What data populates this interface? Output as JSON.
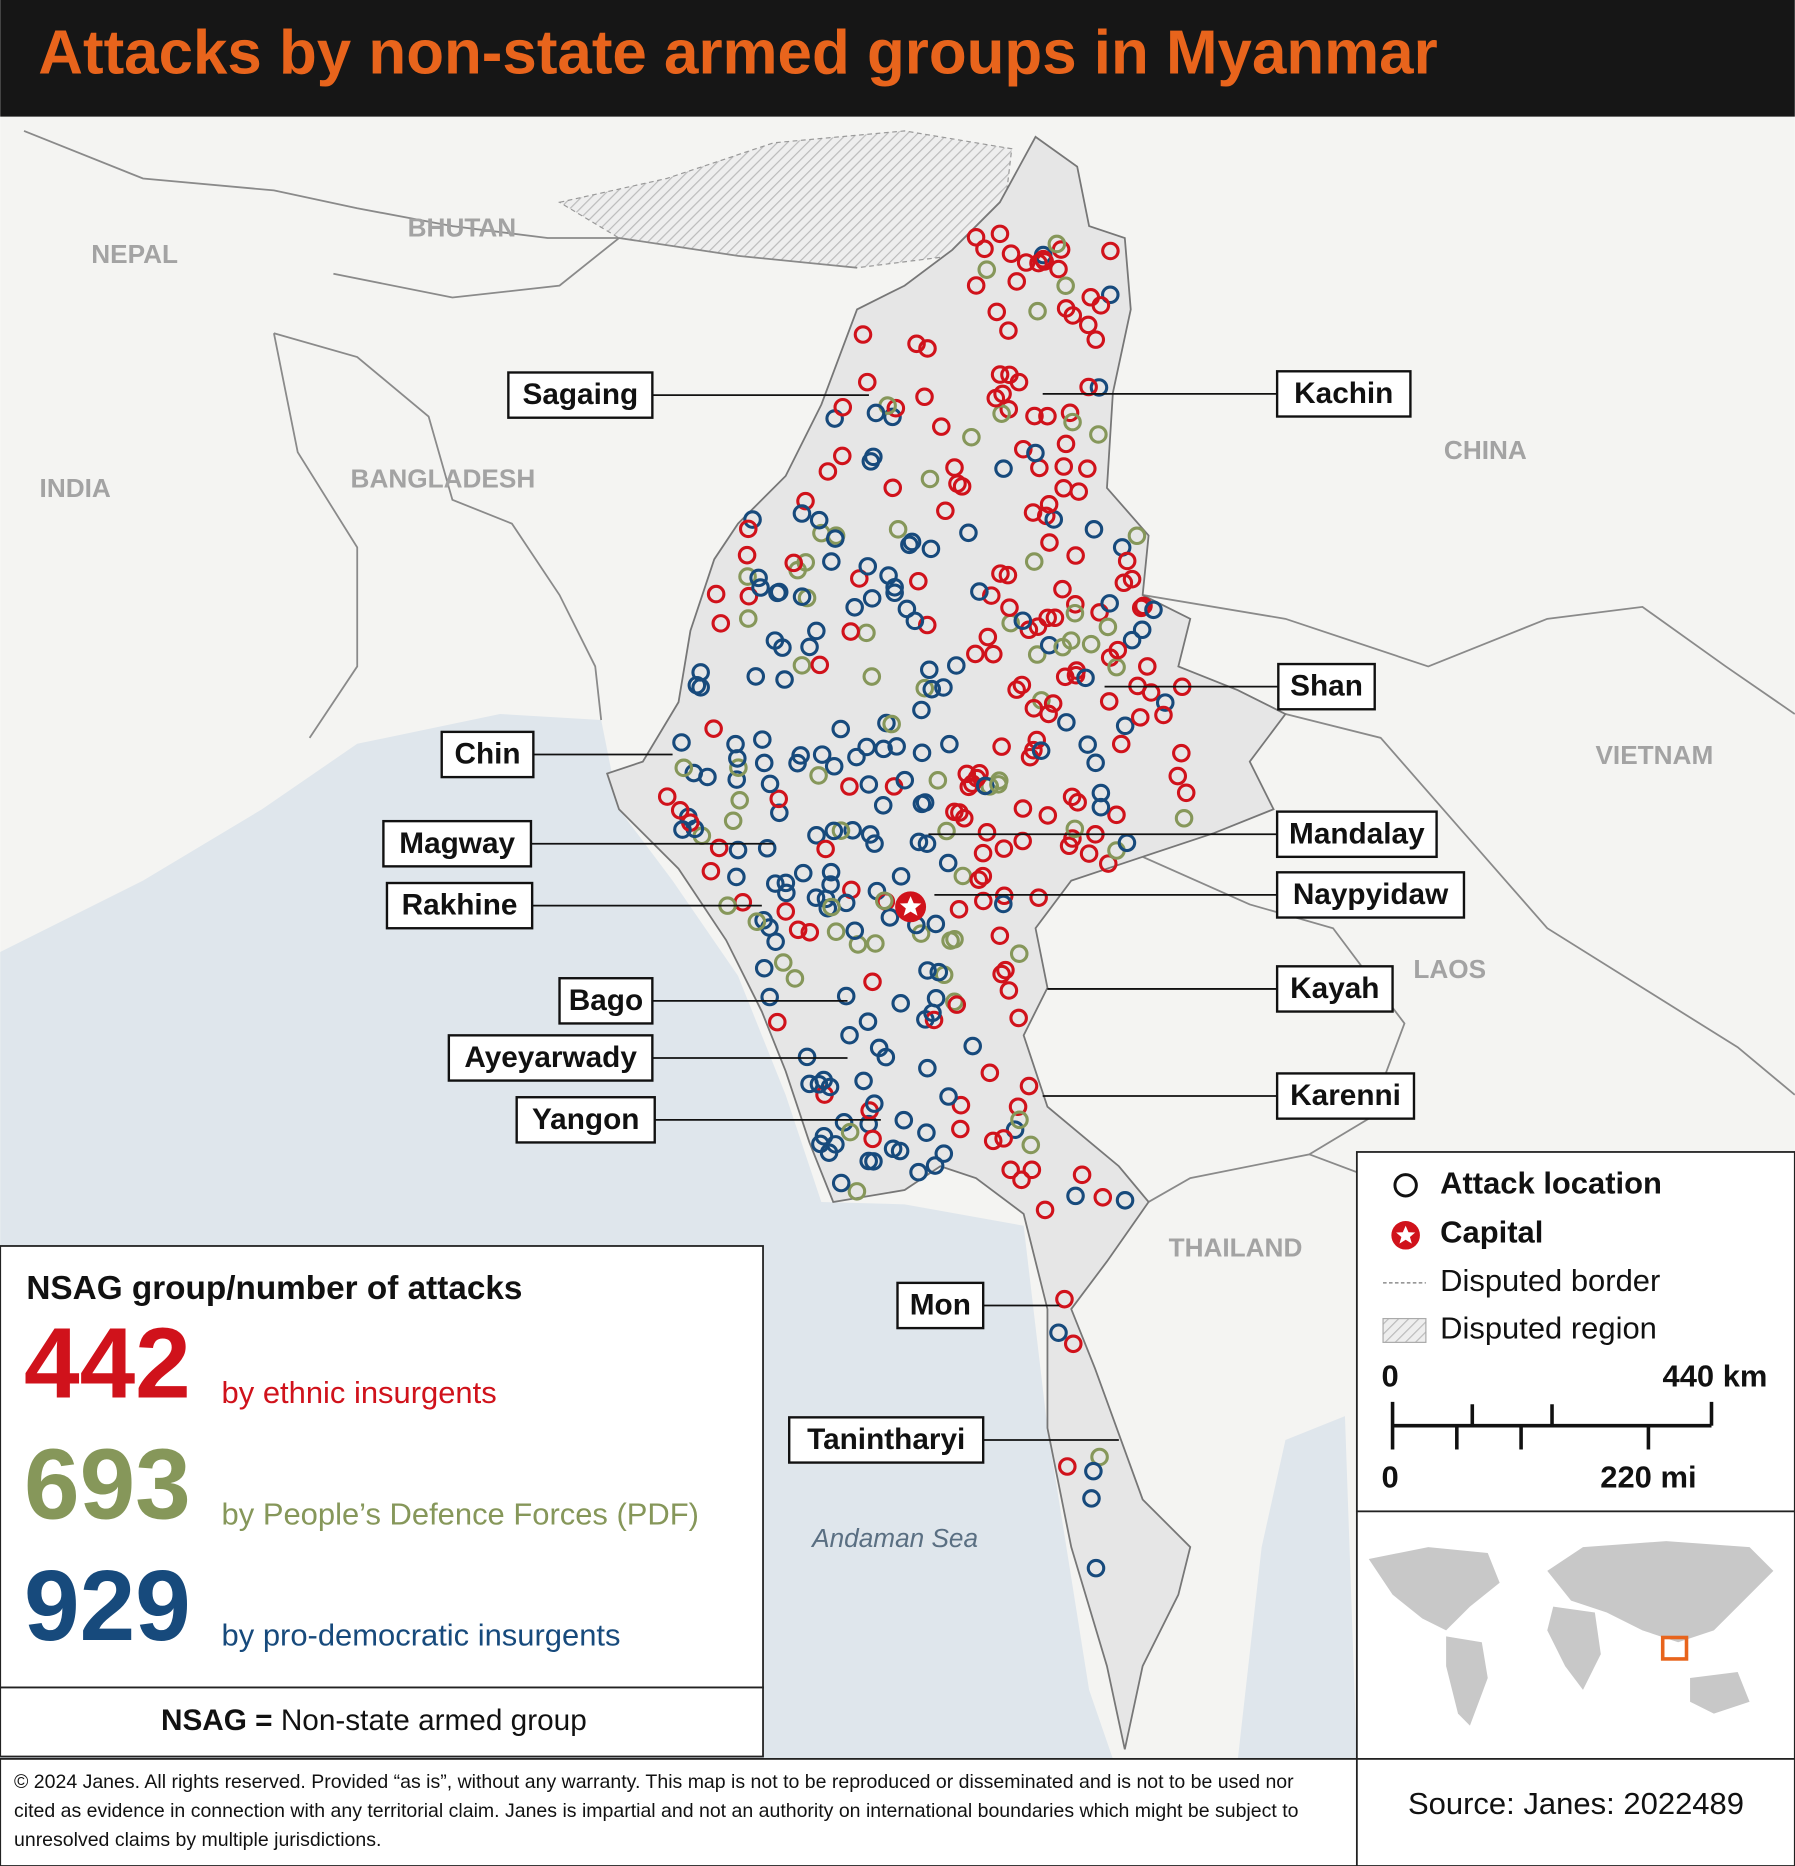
{
  "title": "Attacks by non-state armed groups in Myanmar",
  "map": {
    "countries": [
      "NEPAL",
      "BHUTAN",
      "INDIA",
      "BANGLADESH",
      "CHINA",
      "VIETNAM",
      "LAOS",
      "THAILAND"
    ],
    "sea": "Andaman Sea",
    "regions": [
      "Sagaing",
      "Kachin",
      "Chin",
      "Magway",
      "Rakhine",
      "Bago",
      "Ayeyarwady",
      "Yangon",
      "Mon",
      "Tanintharyi",
      "Shan",
      "Mandalay",
      "Naypyidaw",
      "Kayah",
      "Karenni"
    ]
  },
  "stats": {
    "heading": "NSAG group/number of attacks",
    "groups": [
      {
        "count": 442,
        "label": "by ethnic insurgents",
        "color": "#d0121b"
      },
      {
        "count": 693,
        "label": "by People’s Defence Forces (PDF)",
        "color": "#86975a"
      },
      {
        "count": 929,
        "label": "by pro-democratic insurgents",
        "color": "#174a7c"
      }
    ]
  },
  "definition": {
    "term": "NSAG =",
    "meaning": "Non-state armed group"
  },
  "legend": {
    "items": [
      "Attack location",
      "Capital",
      "Disputed border",
      "Disputed region"
    ],
    "scale": {
      "km_start": 0,
      "km_end": "440 km",
      "mi_start": 0,
      "mi_end": "220 mi"
    }
  },
  "footer": {
    "copyright": "© 2024 Janes. All rights reserved. Provided “as is”, without any warranty. This map is not to be reproduced or disseminated and is not to be used nor cited as evidence in connection with any territorial claim. Janes is impartial and not an authority on international boundaries which might be subject to unresolved claims by multiple jurisdictions.",
    "source": "Source: Janes: 2022489"
  }
}
